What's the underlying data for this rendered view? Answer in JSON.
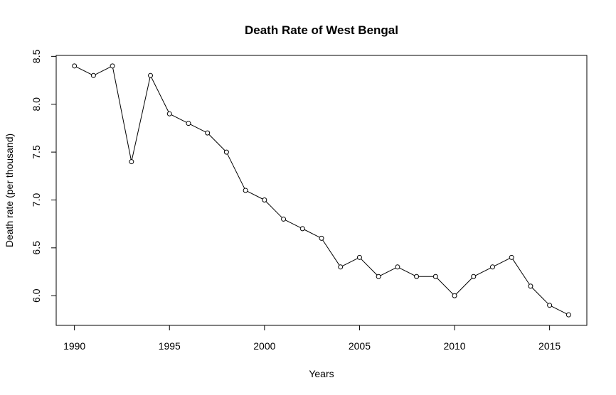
{
  "chart_data": {
    "type": "line",
    "title": "Death Rate of West Bengal",
    "xlabel": "Years",
    "ylabel": "Death rate (per thousand)",
    "x": [
      1990,
      1991,
      1992,
      1993,
      1994,
      1995,
      1996,
      1997,
      1998,
      1999,
      2000,
      2001,
      2002,
      2003,
      2004,
      2005,
      2006,
      2007,
      2008,
      2009,
      2010,
      2011,
      2012,
      2013,
      2014,
      2015,
      2016
    ],
    "series": [
      {
        "values": [
          8.4,
          8.3,
          8.4,
          7.4,
          8.3,
          7.9,
          7.8,
          7.7,
          7.5,
          7.1,
          7.0,
          6.8,
          6.7,
          6.6,
          6.3,
          6.4,
          6.2,
          6.3,
          6.2,
          6.2,
          6.0,
          6.2,
          6.3,
          6.4,
          6.1,
          5.9,
          5.8
        ],
        "color": "#000000",
        "marker": "open-circle"
      }
    ],
    "xticks": [
      "1990",
      "1995",
      "2000",
      "2005",
      "2010",
      "2015"
    ],
    "yticks": [
      "6.0",
      "6.5",
      "7.0",
      "7.5",
      "8.0",
      "8.5"
    ],
    "xlim": [
      1989.04,
      2016.96
    ],
    "ylim": [
      5.69,
      8.51
    ],
    "grid": false,
    "legend": "none"
  }
}
